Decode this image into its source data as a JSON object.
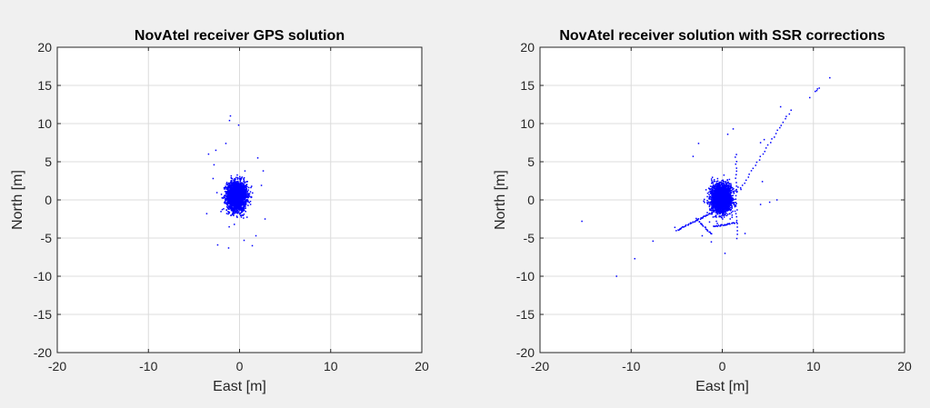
{
  "chart_data": [
    {
      "type": "scatter",
      "title": "NovAtel receiver GPS solution",
      "xlabel": "East [m]",
      "ylabel": "North [m]",
      "xlim": [
        -20,
        20
      ],
      "ylim": [
        -20,
        20
      ],
      "xticks": [
        -20,
        -10,
        0,
        10,
        20
      ],
      "yticks": [
        -20,
        -15,
        -10,
        -5,
        0,
        5,
        10,
        15,
        20
      ],
      "xtick_labels": [
        "-20",
        "-10",
        "0",
        "10",
        "20"
      ],
      "ytick_labels": [
        "-20",
        "-15",
        "-10",
        "-5",
        "0",
        "5",
        "10",
        "15",
        "20"
      ],
      "grid": true,
      "marker_color": "#0000ff",
      "cluster": {
        "center": [
          -0.3,
          0.5
        ],
        "spread_x": 0.9,
        "spread_y": 1.6,
        "count": 2200
      },
      "outliers": [
        [
          -1.0,
          11.0
        ],
        [
          -1.1,
          10.4
        ],
        [
          -1.5,
          7.4
        ],
        [
          -2.6,
          6.5
        ],
        [
          -3.4,
          6.0
        ],
        [
          2.0,
          5.5
        ],
        [
          -3.6,
          -1.8
        ],
        [
          -2.4,
          -5.9
        ],
        [
          1.4,
          -6.0
        ],
        [
          0.5,
          -5.3
        ],
        [
          -1.2,
          -6.3
        ],
        [
          2.6,
          3.8
        ],
        [
          2.8,
          -2.5
        ],
        [
          -0.1,
          9.8
        ],
        [
          -2.8,
          4.6
        ],
        [
          1.8,
          -4.7
        ],
        [
          -2.9,
          2.8
        ],
        [
          2.4,
          1.9
        ]
      ]
    },
    {
      "type": "scatter",
      "title": "NovAtel receiver solution with SSR corrections",
      "xlabel": "East [m]",
      "ylabel": "North [m]",
      "xlim": [
        -20,
        20
      ],
      "ylim": [
        -20,
        20
      ],
      "xticks": [
        -20,
        -10,
        0,
        10,
        20
      ],
      "yticks": [
        -20,
        -15,
        -10,
        -5,
        0,
        5,
        10,
        15,
        20
      ],
      "xtick_labels": [
        "-20",
        "-10",
        "0",
        "10",
        "20"
      ],
      "ytick_labels": [
        "-20",
        "-15",
        "-10",
        "-5",
        "0",
        "5",
        "10",
        "15",
        "20"
      ],
      "grid": true,
      "marker_color": "#0000ff",
      "cluster": {
        "center": [
          -0.1,
          0.2
        ],
        "spread_x": 0.9,
        "spread_y": 1.5,
        "count": 2400
      },
      "trails": [
        {
          "from": [
            2.0,
            1.5
          ],
          "to": [
            7.5,
            11.7
          ],
          "count": 28
        },
        {
          "from": [
            10.2,
            14.2
          ],
          "to": [
            10.6,
            14.6
          ],
          "count": 4
        },
        {
          "from": [
            -5.0,
            -4.0
          ],
          "to": [
            -1.0,
            -1.6
          ],
          "count": 45
        },
        {
          "from": [
            -1.0,
            -3.5
          ],
          "to": [
            1.5,
            -3.0
          ],
          "count": 30
        },
        {
          "from": [
            1.5,
            6.0
          ],
          "to": [
            1.6,
            -5.0
          ],
          "count": 25
        },
        {
          "from": [
            -2.8,
            -2.5
          ],
          "to": [
            -1.2,
            -4.5
          ],
          "count": 20
        }
      ],
      "outliers": [
        [
          -15.4,
          -2.8
        ],
        [
          -11.6,
          -10.0
        ],
        [
          -9.6,
          -7.7
        ],
        [
          -7.6,
          -5.4
        ],
        [
          -5.2,
          -3.6
        ],
        [
          11.8,
          16.0
        ],
        [
          9.6,
          13.4
        ],
        [
          6.4,
          12.2
        ],
        [
          4.2,
          7.5
        ],
        [
          4.6,
          7.9
        ],
        [
          6.0,
          0.0
        ],
        [
          5.2,
          -0.3
        ],
        [
          4.4,
          2.4
        ],
        [
          4.2,
          -0.6
        ],
        [
          1.2,
          9.3
        ],
        [
          0.6,
          8.6
        ],
        [
          -2.6,
          7.4
        ],
        [
          -3.2,
          5.7
        ],
        [
          -2.2,
          -4.7
        ],
        [
          0.3,
          -7.0
        ],
        [
          -1.2,
          -5.5
        ],
        [
          2.5,
          -4.4
        ]
      ]
    }
  ]
}
